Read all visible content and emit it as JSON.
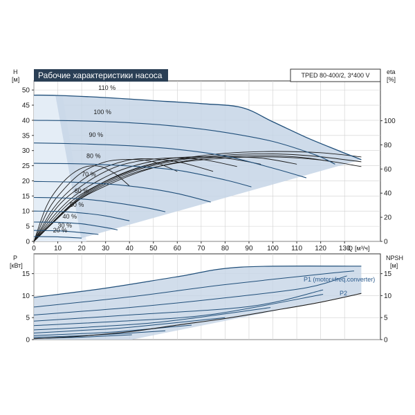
{
  "colors": {
    "curve": "#1f4e79",
    "envelope_fill": "#c5d5e6",
    "fan_fill": "#e7eef7",
    "title_bg": "#2a3f55",
    "efficiency": "#1a1a1a",
    "grid": "#cfcfcf",
    "axis": "#333333"
  },
  "chart_data": [
    {
      "type": "line",
      "title": "Рабочие характеристики насоса",
      "model": "TPED 80-400/2, 3*400 V",
      "ylabel": "H",
      "ylabel_unit": "[м]",
      "xlabel": "Q",
      "xlabel_unit": "[м³/ч]",
      "y2label": "eta",
      "y2label_unit": "[%]",
      "xlim": [
        0,
        145
      ],
      "ylim": [
        0,
        53
      ],
      "y2lim": [
        0,
        133
      ],
      "x_ticks": [
        0,
        10,
        20,
        30,
        40,
        50,
        60,
        70,
        80,
        90,
        100,
        110,
        120,
        130
      ],
      "y_ticks": [
        0,
        5,
        10,
        15,
        20,
        25,
        30,
        35,
        40,
        45,
        50
      ],
      "y2_ticks": [
        0,
        20,
        40,
        60,
        80,
        100
      ],
      "grid": true,
      "series": [
        {
          "name": "110 %",
          "x": [
            0,
            10,
            30,
            50,
            70,
            87,
            100,
            115,
            128,
            137
          ],
          "y": [
            48.3,
            48.2,
            47.5,
            46.5,
            45.5,
            44.2,
            39.5,
            34,
            29.8,
            27
          ]
        },
        {
          "name": "100 %",
          "x": [
            0,
            20,
            40,
            60,
            80,
            100,
            118,
            126
          ],
          "y": [
            40,
            39.8,
            39.2,
            38,
            36,
            33,
            28.5,
            25.5
          ]
        },
        {
          "name": "90 %",
          "x": [
            0,
            20,
            40,
            60,
            80,
            100,
            114
          ],
          "y": [
            32.5,
            32.2,
            31.6,
            30.4,
            28.2,
            24.2,
            21
          ]
        },
        {
          "name": "80 %",
          "x": [
            0,
            20,
            40,
            60,
            80,
            91
          ],
          "y": [
            25.8,
            25.6,
            24.9,
            23.5,
            20.3,
            18
          ]
        },
        {
          "name": "70 %",
          "x": [
            0,
            15,
            30,
            45,
            60,
            74
          ],
          "y": [
            19.8,
            19.6,
            19,
            17.8,
            15.8,
            13
          ]
        },
        {
          "name": "60 %",
          "x": [
            0,
            10,
            20,
            30,
            45,
            55
          ],
          "y": [
            14.5,
            14.4,
            14,
            13.2,
            11.4,
            9.8
          ]
        },
        {
          "name": "50 %",
          "x": [
            0,
            10,
            20,
            30,
            40
          ],
          "y": [
            10,
            9.9,
            9.4,
            8.4,
            6.8
          ]
        },
        {
          "name": "40 %",
          "x": [
            0,
            10,
            20,
            30,
            35
          ],
          "y": [
            6.4,
            6.3,
            5.8,
            4.6,
            3.8
          ]
        },
        {
          "name": "30 %",
          "x": [
            0,
            10,
            20,
            27
          ],
          "y": [
            3.6,
            3.5,
            2.9,
            2.3
          ]
        },
        {
          "name": "20 %",
          "x": [
            0,
            10,
            20
          ],
          "y": [
            1.6,
            1.5,
            1.1
          ]
        }
      ],
      "efficiency_curves": [
        {
          "x": [
            0,
            20,
            40,
            60,
            80,
            100,
            120,
            137
          ],
          "y": [
            0,
            38,
            58,
            68,
            73,
            74.5,
            73.5,
            70
          ]
        },
        {
          "x": [
            0,
            20,
            40,
            60,
            80,
            100,
            118,
            137
          ],
          "y": [
            0,
            37,
            57,
            67,
            71.5,
            72.5,
            70.5,
            66
          ]
        },
        {
          "x": [
            0,
            20,
            40,
            60,
            80,
            100,
            120,
            137
          ],
          "y": [
            0,
            36,
            55.5,
            65,
            69,
            70,
            67.5,
            62
          ]
        },
        {
          "x": [
            0,
            15,
            30,
            50,
            70,
            90,
            110,
            125
          ],
          "y": [
            0,
            29,
            46,
            61,
            68.5,
            71,
            70,
            66
          ]
        },
        {
          "x": [
            0,
            15,
            30,
            45,
            60,
            75,
            95,
            110
          ],
          "y": [
            0,
            32,
            50,
            62,
            68,
            70,
            69,
            64
          ]
        },
        {
          "x": [
            0,
            10,
            20,
            35,
            50,
            65,
            80,
            95
          ],
          "y": [
            0,
            25,
            42,
            58,
            66.5,
            70,
            69,
            64
          ]
        },
        {
          "x": [
            0,
            10,
            20,
            30,
            40,
            55,
            70,
            85
          ],
          "y": [
            0,
            29,
            46,
            58,
            65,
            69,
            68,
            62
          ]
        },
        {
          "x": [
            0,
            8,
            16,
            25,
            35,
            45,
            60,
            75
          ],
          "y": [
            0,
            27,
            44,
            57,
            65,
            68.5,
            66,
            58
          ]
        },
        {
          "x": [
            0,
            6,
            12,
            20,
            30,
            40,
            50,
            60
          ],
          "y": [
            0,
            26,
            42,
            57,
            66,
            68,
            66,
            58
          ]
        },
        {
          "x": [
            0,
            5,
            10,
            16,
            22,
            28,
            34,
            40
          ],
          "y": [
            0,
            28,
            44,
            56,
            62,
            62,
            56,
            46
          ]
        }
      ]
    },
    {
      "type": "line",
      "ylabel": "P",
      "ylabel_unit": "[кВт]",
      "y2label": "NPSH",
      "y2label_unit": "[м]",
      "xlim": [
        0,
        145
      ],
      "ylim": [
        0,
        19.5
      ],
      "y2lim": [
        0,
        19.5
      ],
      "y_ticks": [
        0,
        5,
        10,
        15
      ],
      "y2_ticks": [
        0,
        5,
        10,
        15
      ],
      "grid": true,
      "labels": [
        "P1 (motor+freq.converter)",
        "P2"
      ],
      "series": [
        {
          "name": "110 %",
          "x": [
            0,
            30,
            60,
            87,
            137
          ],
          "y": [
            9.6,
            11.7,
            14.3,
            16.5,
            16.7
          ]
        },
        {
          "name": "100 %",
          "x": [
            0,
            40,
            80,
            126,
            134
          ],
          "y": [
            7.4,
            9.7,
            12.5,
            15.2,
            15.6
          ]
        },
        {
          "name": "90 %",
          "x": [
            0,
            40,
            80,
            114,
            131
          ],
          "y": [
            5.6,
            7.3,
            9.5,
            11.8,
            14.5
          ]
        },
        {
          "name": "80 %",
          "x": [
            0,
            40,
            91,
            121
          ],
          "y": [
            4.2,
            5.6,
            7.6,
            11.3
          ]
        },
        {
          "name": "70 %",
          "x": [
            0,
            37,
            74,
            121
          ],
          "y": [
            3.2,
            4.2,
            5.7,
            10.3
          ]
        },
        {
          "name": "60 %",
          "x": [
            0,
            28,
            55,
            99
          ],
          "y": [
            2.2,
            3.0,
            4.1,
            7.3
          ]
        },
        {
          "name": "50 %",
          "x": [
            0,
            20,
            40,
            80
          ],
          "y": [
            1.5,
            2.1,
            2.8,
            5.0
          ]
        },
        {
          "name": "40 %",
          "x": [
            0,
            17,
            35,
            66
          ],
          "y": [
            0.9,
            1.3,
            1.8,
            3.3
          ]
        },
        {
          "name": "30 %",
          "x": [
            0,
            13,
            27,
            55
          ],
          "y": [
            0.5,
            0.75,
            1.05,
            2.0
          ]
        },
        {
          "name": "20 %",
          "x": [
            0,
            10,
            20,
            41
          ],
          "y": [
            0.25,
            0.4,
            0.55,
            1.1
          ]
        }
      ],
      "npsh_curve": {
        "x": [
          0,
          20,
          40,
          60,
          80,
          100,
          120,
          137
        ],
        "y": [
          0.2,
          0.8,
          1.8,
          3.3,
          4.8,
          6.6,
          8.5,
          10.5
        ]
      }
    }
  ]
}
